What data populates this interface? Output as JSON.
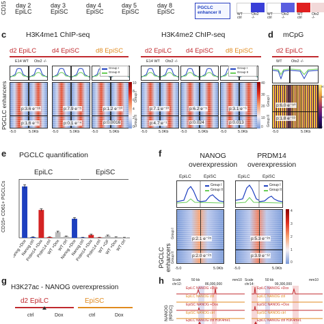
{
  "top": {
    "axis_label": "CD15",
    "stages": [
      "day 2\nEpiLC",
      "day 3\nEpiSC",
      "day 4\nEpiSC",
      "day 5\nEpiSC",
      "day 8\nEpiSC"
    ],
    "box_label": "PGCLC\nenhancer II",
    "heat_labels": [
      "WT\nctrl",
      "Otx2\n-/-",
      "WT\nctrl",
      "Otx2\n-/-",
      "WT\nctrl",
      "Otx2\n-/-"
    ]
  },
  "panel_c": {
    "letter": "c",
    "title_left": "H3K4me1 ChIP-seq",
    "title_right": "H3K4me2 ChIP-seq",
    "groups_left": [
      "d2 EpiLC",
      "d4 EpiSC",
      "d8 EpiSC"
    ],
    "groups_right": [
      "d2 EpiLC",
      "d4 EpiSC",
      "d8 EpiSC"
    ],
    "col_labels": [
      "E14 WT",
      "Otx2 -/-"
    ],
    "legend": [
      "Group I",
      "Group II"
    ],
    "row_label": "PGCLC enhancers",
    "group_axis": [
      "Group I",
      "Group II"
    ],
    "pvals_top_left": [
      "p:3.6 e⁻¹⁶",
      "p:7.9 e⁻⁵",
      "p:1.2 e⁻¹⁰"
    ],
    "pvals_bot_left": [
      "p:1.6 e⁻⁶",
      "p:0.1 e⁻⁴",
      "p:0.0016"
    ],
    "pvals_top_right": [
      "p:7.1 e⁻¹⁰",
      "p:6.2 e⁻⁵",
      "p:3.1 e⁻⁶"
    ],
    "pvals_bot_right": [
      "p:4.7 e⁻¹",
      "p:0.024",
      "p:0.013"
    ],
    "x_ticks": [
      "-5.0",
      "5.0Kb"
    ],
    "cbar_left": [
      "10",
      "8",
      "6",
      "4",
      "2",
      "0"
    ],
    "cbar_right": [
      "40",
      "30",
      "20",
      "10",
      "0"
    ]
  },
  "panel_d": {
    "letter": "d",
    "title": "mCpG",
    "group": "d2 EpiLC",
    "col_labels": [
      "WT",
      "Otx2 -/-"
    ],
    "group_axis": [
      "Group I",
      "Group II"
    ],
    "pvals": [
      "p:6.0 e⁻⁵⁰",
      "p:1.8 e⁻¹³"
    ],
    "x_ticks": [
      "-5.0",
      "5.0Kb"
    ],
    "cbar": [
      "80",
      "60",
      "40",
      "20",
      "0"
    ]
  },
  "panel_e": {
    "letter": "e",
    "title": "PGCLC quantification",
    "group_left": "EpiLC",
    "group_right": "EpiSC",
    "ylabel": "CD15+ CD61+ PGCLCs",
    "categories": [
      "Nanog +Dox",
      "Nanog ctrl",
      "Prdm14 +Dox",
      "Prdm14 ctrl",
      "WT +Dox",
      "WT ctrl",
      "Nanog +Dox",
      "Nanog ctrl",
      "Prdm14 +Dox",
      "Prdm14 ctrl",
      "WT +GF",
      "WT +Dox",
      "WT ctrl"
    ]
  },
  "chart_data": {
    "type": "bar",
    "title": "PGCLC quantification",
    "categories": [
      "Nanog +Dox",
      "Nanog ctrl",
      "Prdm14 +Dox",
      "Prdm14 ctrl",
      "WT +Dox",
      "WT ctrl",
      "Nanog +Dox",
      "Nanog ctrl",
      "Prdm14 +Dox",
      "Prdm14 ctrl",
      "WT +GF",
      "WT +Dox",
      "WT ctrl"
    ],
    "values": [
      35,
      0.5,
      19,
      0.5,
      4,
      1,
      13,
      0.3,
      2,
      0.3,
      1.5,
      0.5,
      0.3
    ],
    "errors": [
      1.2,
      0.2,
      0.8,
      0.2,
      0.6,
      0.3,
      0.8,
      0.1,
      0.5,
      0.1,
      0.4,
      0.2,
      0.1
    ],
    "colors": [
      "#1d3fbf",
      "#1d3fbf",
      "#d42323",
      "#d42323",
      "#bbbbbb",
      "#bbbbbb",
      "#1d3fbf",
      "#1d3fbf",
      "#d42323",
      "#d42323",
      "#bbbbbb",
      "#bbbbbb",
      "#bbbbbb"
    ],
    "ylim": [
      0,
      40
    ],
    "xlabel": "",
    "ylabel": "CD15+ CD61+ PGCLCs"
  },
  "panel_f": {
    "letter": "f",
    "title_left": "NANOG\noverexpression",
    "title_right": "PRDM14\noverexpression",
    "col_labels": [
      "EpiLC",
      "EpiSC"
    ],
    "legend": [
      "Group I",
      "Group II"
    ],
    "row_label": "PGCLC\nenhancers",
    "group_axis": [
      "Group I",
      "Group II"
    ],
    "pvals_left": [
      "p:2.1 e⁻³⁵",
      "p:2.0 e⁻²⁵"
    ],
    "pvals_right": [
      "p:5.3 e⁻³⁵",
      "p:3.9 e⁻¹²"
    ],
    "x_ticks": [
      "-5.0",
      "5.0Kb",
      "-5.0",
      "5.0Kb"
    ],
    "cbar": [
      "4",
      "3",
      "2",
      "1",
      "0"
    ]
  },
  "panel_g": {
    "letter": "g",
    "title": "H3K27ac - NANOG overexpression",
    "groups": [
      "d2 EpiLC",
      "EpiSC"
    ],
    "subs": [
      "ctrl",
      "Dox",
      "ctrl",
      "Dox"
    ]
  },
  "panel_h": {
    "letter": "h",
    "ylabel": "NANOG\n[RPGC]",
    "track_labels": [
      "EpiLC NANOG +Dox",
      "EpiLC NANOG ctrl",
      "EpiSC NANOG +Dox",
      "EpiSC NANOG ctrl",
      "EpiLC NANOG ctrl H3K4me1"
    ],
    "coords_left": [
      "Scale",
      "chr12:",
      "50 kb",
      "86,000,000",
      "mm10"
    ],
    "coords_right": [
      "Scale",
      "chr14:",
      "50 kb",
      "99,300,000",
      "mm10"
    ]
  }
}
